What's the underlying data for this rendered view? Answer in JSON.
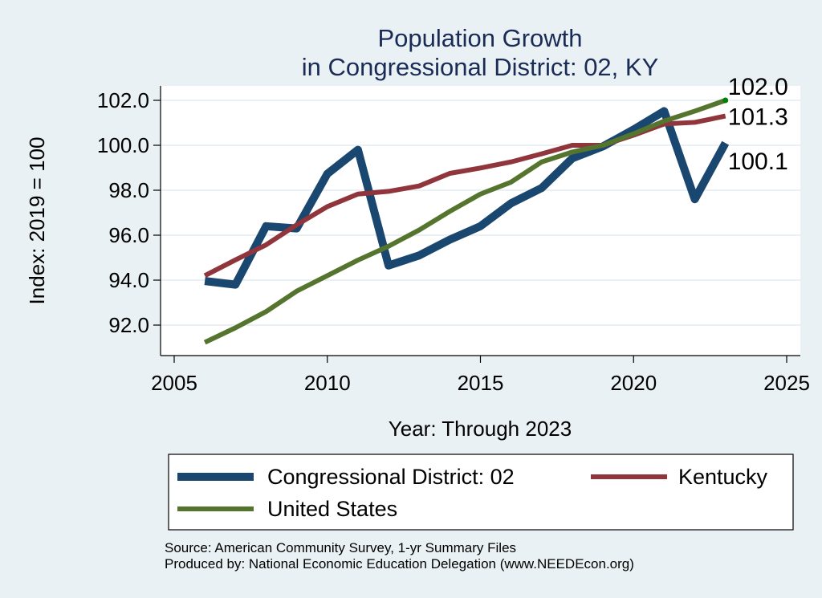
{
  "chart_data": {
    "type": "line",
    "title": "Population Growth",
    "subtitle": "in Congressional District: 02, KY",
    "xlabel": "Year: Through 2023",
    "ylabel": "Index: 2019 = 100",
    "xlim": [
      2005,
      2025
    ],
    "ylim": [
      91,
      102.5
    ],
    "x_ticks": [
      2005,
      2010,
      2015,
      2020,
      2025
    ],
    "y_ticks": [
      92,
      94,
      96,
      98,
      100,
      102
    ],
    "y_tick_labels": [
      "92.0",
      "94.0",
      "96.0",
      "98.0",
      "100.0",
      "102.0"
    ],
    "grid": true,
    "legend_position": "bottom",
    "x": [
      2006,
      2007,
      2008,
      2009,
      2010,
      2011,
      2012,
      2013,
      2014,
      2015,
      2016,
      2017,
      2018,
      2019,
      2020,
      2021,
      2022,
      2023
    ],
    "series": [
      {
        "name": "Congressional District: 02",
        "color": "#1a476f",
        "values": [
          93.96,
          93.8,
          96.4,
          96.3,
          98.73,
          99.8,
          94.65,
          95.1,
          95.8,
          96.4,
          97.42,
          98.1,
          99.42,
          99.95,
          100.7,
          101.52,
          97.6,
          100.1
        ],
        "end_label": "100.1"
      },
      {
        "name": "Kentucky",
        "color": "#90353b",
        "values": [
          94.2,
          94.9,
          95.57,
          96.46,
          97.27,
          97.83,
          97.95,
          98.19,
          98.75,
          98.99,
          99.26,
          99.62,
          100.0,
          100.0,
          100.45,
          100.95,
          101.02,
          101.3
        ],
        "end_label": "101.3"
      },
      {
        "name": "United States",
        "color": "#55752f",
        "values": [
          91.23,
          91.88,
          92.6,
          93.51,
          94.2,
          94.89,
          95.51,
          96.23,
          97.06,
          97.83,
          98.36,
          99.26,
          99.7,
          100.0,
          100.51,
          101.08,
          101.52,
          102.0
        ],
        "end_label": "102.0"
      }
    ],
    "notes": [
      "Source: American Community Survey, 1-yr Summary Files",
      "Produced by: National Economic Education Delegation (www.NEEDEcon.org)"
    ]
  },
  "colors": {
    "background": "#eaf1f4",
    "plot_background": "#ffffff",
    "title": "#1a2c55",
    "endpoint_marker": "#008000"
  }
}
